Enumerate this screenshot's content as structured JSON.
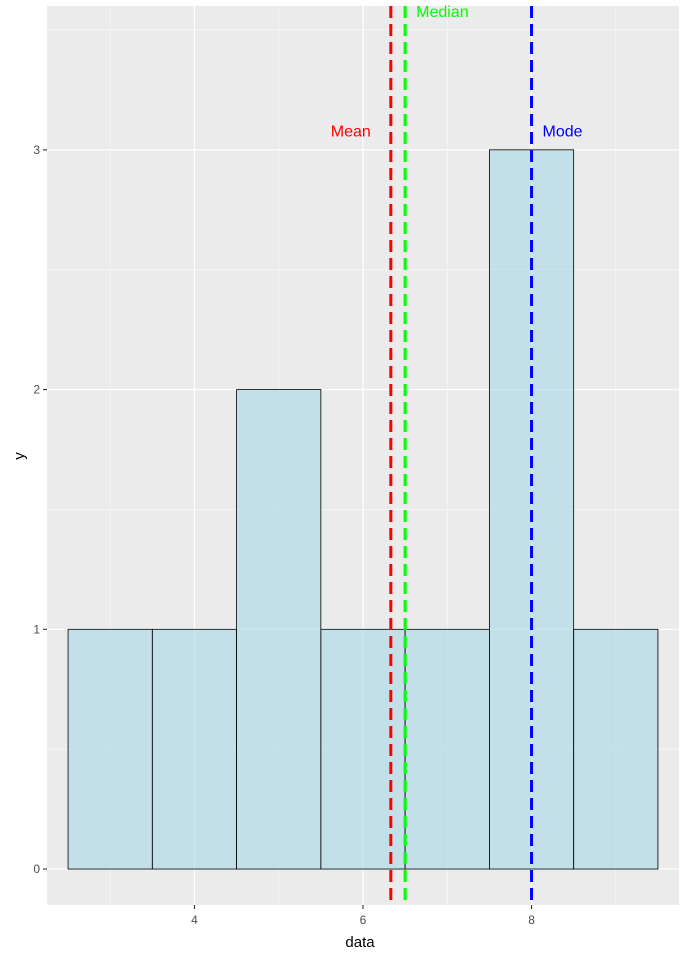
{
  "chart_data": {
    "type": "bar",
    "subtype": "histogram",
    "xlabel": "data",
    "ylabel": "y",
    "xlim": [
      2.25,
      9.75
    ],
    "ylim": [
      -0.15,
      3.6
    ],
    "x_ticks": [
      4,
      6,
      8
    ],
    "x_tick_labels": [
      "4",
      "6",
      "8"
    ],
    "y_ticks": [
      0,
      1,
      2,
      3
    ],
    "y_tick_labels": [
      "0",
      "1",
      "2",
      "3"
    ],
    "grid": true,
    "background": "#EBEBEB",
    "bar_fill": "#ADD8E6",
    "bar_outline": "#000000",
    "bins": [
      {
        "from": 2.5,
        "to": 3.5,
        "count": 1
      },
      {
        "from": 3.5,
        "to": 4.5,
        "count": 1
      },
      {
        "from": 4.5,
        "to": 5.5,
        "count": 2
      },
      {
        "from": 5.5,
        "to": 6.5,
        "count": 1
      },
      {
        "from": 6.5,
        "to": 7.5,
        "count": 1
      },
      {
        "from": 7.5,
        "to": 8.5,
        "count": 3
      },
      {
        "from": 8.5,
        "to": 9.5,
        "count": 1
      }
    ],
    "vlines": [
      {
        "label": "Mean",
        "x": 6.33,
        "color": "#FF0000",
        "label_y": 3.08,
        "label_anchor": "right"
      },
      {
        "label": "Median",
        "x": 6.5,
        "color": "#00FF00",
        "label_y": 3.58,
        "label_anchor": "left"
      },
      {
        "label": "Mode",
        "x": 8,
        "color": "#0000FF",
        "label_y": 3.08,
        "label_anchor": "left"
      }
    ]
  }
}
